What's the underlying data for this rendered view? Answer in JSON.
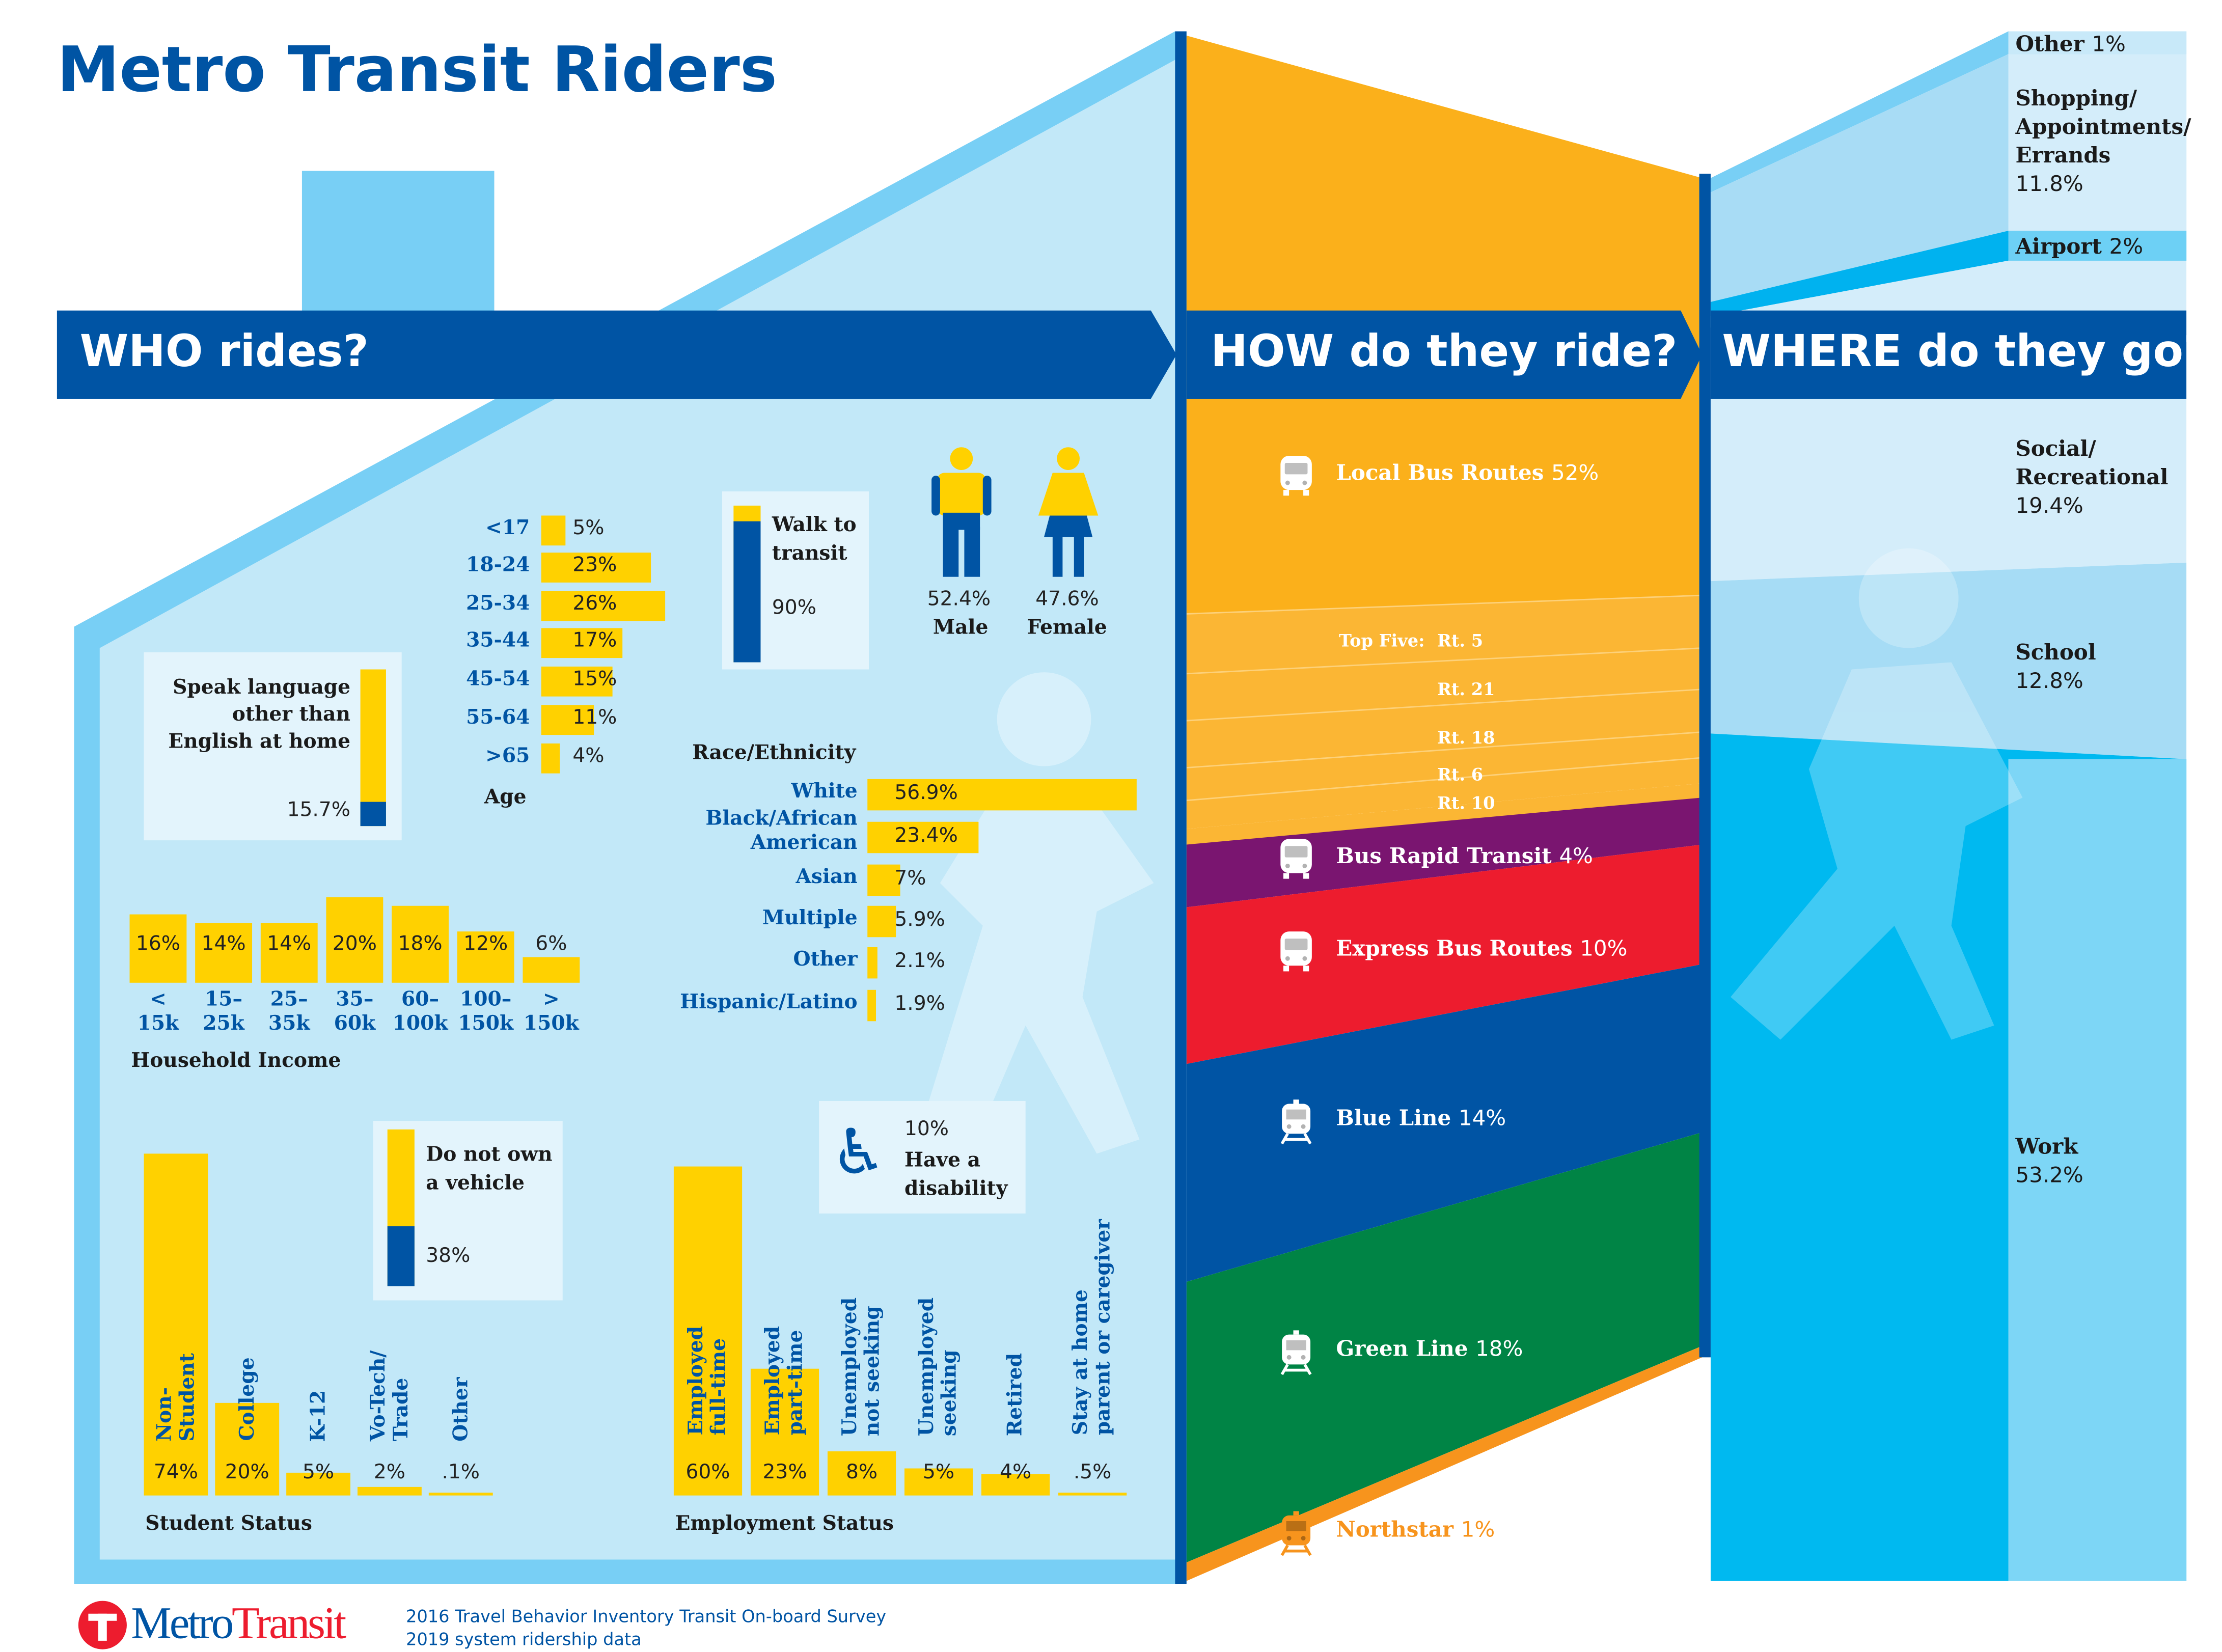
{
  "title": "Metro Transit Riders",
  "colors": {
    "brand_blue": "#0054a4",
    "bar_yellow": "#ffd100",
    "house_light": "#c2e8f8",
    "house_border": "#78cff5"
  },
  "who": {
    "header": "WHO rides?",
    "age": {
      "title": "Age",
      "rows": [
        {
          "label": "<17",
          "value": 5,
          "text": "5%"
        },
        {
          "label": "18-24",
          "value": 23,
          "text": "23%"
        },
        {
          "label": "25-34",
          "value": 26,
          "text": "26%"
        },
        {
          "label": "35-44",
          "value": 17,
          "text": "17%"
        },
        {
          "label": "45-54",
          "value": 15,
          "text": "15%"
        },
        {
          "label": "55-64",
          "value": 11,
          "text": "11%"
        },
        {
          "label": ">65",
          "value": 4,
          "text": "4%"
        }
      ]
    },
    "language": {
      "line1": "Speak language",
      "line2": "other than",
      "line3": "English at home",
      "value": 15.7,
      "text": "15.7%"
    },
    "walk": {
      "line1": "Walk to",
      "line2": "transit",
      "value": 90,
      "text": "90%"
    },
    "gender": {
      "male": {
        "pct": "52.4%",
        "label": "Male"
      },
      "female": {
        "pct": "47.6%",
        "label": "Female"
      }
    },
    "race": {
      "title": "Race/Ethnicity",
      "rows": [
        {
          "label": "White",
          "value": 56.9,
          "text": "56.9%"
        },
        {
          "label": "Black/African American",
          "value": 23.4,
          "text": "23.4%"
        },
        {
          "label": "Asian",
          "value": 7,
          "text": "7%"
        },
        {
          "label": "Multiple",
          "value": 5.9,
          "text": "5.9%"
        },
        {
          "label": "Other",
          "value": 2.1,
          "text": "2.1%"
        },
        {
          "label": "Hispanic/Latino",
          "value": 1.9,
          "text": "1.9%"
        }
      ]
    },
    "income": {
      "title": "Household Income",
      "rows": [
        {
          "l1": "<",
          "l2": "15k",
          "value": 16,
          "text": "16%"
        },
        {
          "l1": "15–",
          "l2": "25k",
          "value": 14,
          "text": "14%"
        },
        {
          "l1": "25–",
          "l2": "35k",
          "value": 14,
          "text": "14%"
        },
        {
          "l1": "35–",
          "l2": "60k",
          "value": 20,
          "text": "20%"
        },
        {
          "l1": "60–",
          "l2": "100k",
          "value": 18,
          "text": "18%"
        },
        {
          "l1": "100–",
          "l2": "150k",
          "value": 12,
          "text": "12%"
        },
        {
          "l1": ">",
          "l2": "150k",
          "value": 6,
          "text": "6%"
        }
      ]
    },
    "vehicle": {
      "line1": "Do not own",
      "line2": "a vehicle",
      "value": 38,
      "text": "38%"
    },
    "disability": {
      "pct": "10%",
      "line1": "Have a",
      "line2": "disability"
    },
    "student": {
      "title": "Student Status",
      "rows": [
        {
          "l1": "Non-",
          "l2": "Student",
          "value": 74,
          "text": "74%"
        },
        {
          "l1": "College",
          "l2": "",
          "value": 20,
          "text": "20%"
        },
        {
          "l1": "K-12",
          "l2": "",
          "value": 5,
          "text": "5%"
        },
        {
          "l1": "Vo-Tech/",
          "l2": "Trade",
          "value": 2,
          "text": "2%"
        },
        {
          "l1": "Other",
          "l2": "",
          "value": 0.1,
          "text": ".1%"
        }
      ]
    },
    "employment": {
      "title": "Employment Status",
      "rows": [
        {
          "l1": "Employed",
          "l2": "full-time",
          "value": 60,
          "text": "60%"
        },
        {
          "l1": "Employed",
          "l2": "part-time",
          "value": 23,
          "text": "23%"
        },
        {
          "l1": "Unemployed",
          "l2": "not seeking",
          "value": 8,
          "text": "8%"
        },
        {
          "l1": "Unemployed",
          "l2": "seeking",
          "value": 5,
          "text": "5%"
        },
        {
          "l1": "Retired",
          "l2": "",
          "value": 4,
          "text": "4%"
        },
        {
          "l1": "Stay at home",
          "l2": "parent or caregiver",
          "value": 0.5,
          "text": ".5%"
        }
      ]
    }
  },
  "how": {
    "header": "HOW do they ride?",
    "modes": [
      {
        "name": "Local Bus Routes",
        "pct": "52%",
        "icon": "bus-icon",
        "color": "#fbb01b"
      },
      {
        "name": "Bus Rapid Transit",
        "pct": "4%",
        "icon": "bus-icon",
        "color": "#7a1570"
      },
      {
        "name": "Express Bus Routes",
        "pct": "10%",
        "icon": "bus-icon",
        "color": "#ed1c2e"
      },
      {
        "name": "Blue Line",
        "pct": "14%",
        "icon": "train-icon",
        "color": "#0054a4"
      },
      {
        "name": "Green Line",
        "pct": "18%",
        "icon": "train-icon",
        "color": "#008445"
      },
      {
        "name": "Northstar",
        "pct": "1%",
        "icon": "train-icon",
        "color": "#f7941d"
      }
    ],
    "top_five": {
      "label": "Top Five:",
      "routes": [
        "Rt. 5",
        "Rt. 21",
        "Rt. 18",
        "Rt. 6",
        "Rt. 10"
      ]
    }
  },
  "where": {
    "header": "WHERE do they go?",
    "destinations": [
      {
        "name": "Other",
        "pct": "1%"
      },
      {
        "name": "Shopping/ Appointments/ Errands",
        "pct": "11.8%"
      },
      {
        "name": "Airport",
        "pct": "2%"
      },
      {
        "name": "Social/ Recreational",
        "pct": "19.4%"
      },
      {
        "name": "School",
        "pct": "12.8%"
      },
      {
        "name": "Work",
        "pct": "53.2%"
      }
    ]
  },
  "footer": {
    "logo_metro": "Metro",
    "logo_transit": "Transit",
    "sources": [
      "2016 Travel Behavior Inventory Transit On-board Survey",
      "2019 system ridership data"
    ]
  }
}
